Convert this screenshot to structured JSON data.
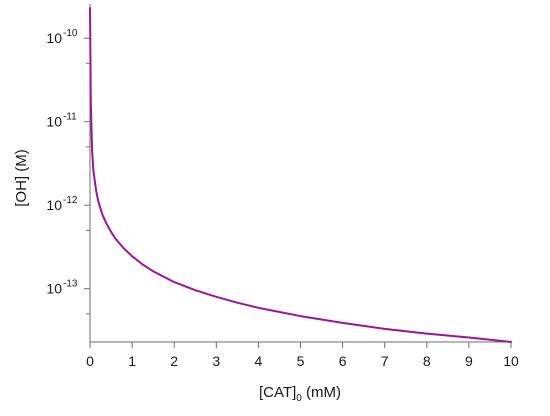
{
  "chart_data": {
    "type": "line",
    "title": "",
    "xlabel": {
      "main": "[CAT]",
      "subscript": "0",
      "unit": " (mM)"
    },
    "ylabel": "[OH] (M)",
    "x_scale": "linear",
    "y_scale": "log",
    "xlim": [
      0,
      10
    ],
    "ylim": [
      2.3e-14,
      2.3e-10
    ],
    "x_ticks": [
      0,
      1,
      2,
      3,
      4,
      5,
      6,
      7,
      8,
      9,
      10
    ],
    "x_tick_labels": [
      "0",
      "1",
      "2",
      "3",
      "4",
      "5",
      "6",
      "7",
      "8",
      "9",
      "10"
    ],
    "y_ticks": [
      1e-10,
      1e-11,
      1e-12,
      1e-13
    ],
    "y_tick_labels": [
      {
        "base": "10",
        "exp": "-10"
      },
      {
        "base": "10",
        "exp": "-11"
      },
      {
        "base": "10",
        "exp": "-12"
      },
      {
        "base": "10",
        "exp": "-13"
      }
    ],
    "y_minor_ticks": [
      5e-10,
      5e-11,
      5e-12,
      5e-13,
      5e-14
    ],
    "grid": false,
    "series": [
      {
        "color": "#9b159b",
        "x": [
          0,
          0.02,
          0.05,
          0.08,
          0.1,
          0.15,
          0.2,
          0.3,
          0.4,
          0.5,
          0.6,
          0.8,
          1.0,
          1.25,
          1.5,
          2.0,
          2.5,
          3.0,
          3.5,
          4.0,
          5.0,
          6.0,
          7.0,
          8.0,
          9.0,
          10.0
        ],
        "y": [
          2.3e-10,
          1.6e-11,
          4.5e-12,
          2.6e-12,
          2.2e-12,
          1.45e-12,
          1.1e-12,
          7.6e-13,
          5.9e-13,
          4.8e-13,
          4e-13,
          3.05e-13,
          2.45e-13,
          1.95e-13,
          1.62e-13,
          1.2e-13,
          9.6e-14,
          8e-14,
          6.8e-14,
          5.9e-14,
          4.7e-14,
          3.9e-14,
          3.3e-14,
          2.9e-14,
          2.6e-14,
          2.3e-14
        ]
      }
    ]
  }
}
